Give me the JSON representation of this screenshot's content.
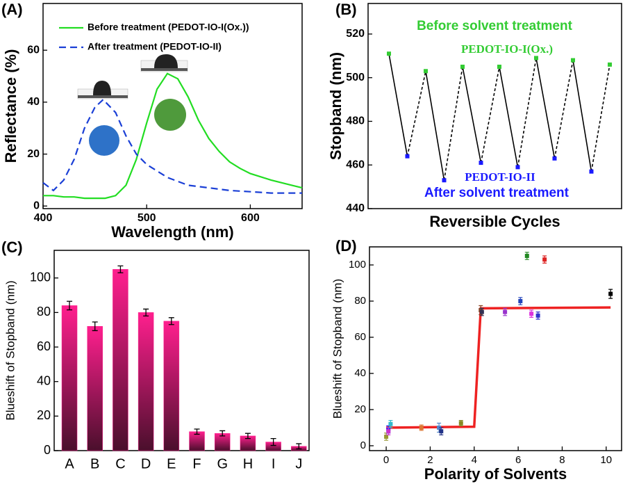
{
  "chart_data": [
    {
      "type": "line",
      "title": "(A)",
      "xlabel": "Wavelength (nm)",
      "ylabel": "Reflectance (%)",
      "xlim": [
        400,
        650
      ],
      "ylim": [
        -1,
        78
      ],
      "xticks": [
        400,
        500,
        600
      ],
      "yticks": [
        0,
        20,
        40,
        60
      ],
      "legend": "upper center",
      "series": [
        {
          "name": "Before treatment (PEDOT-IO-I(Ox.))",
          "color": "#22dd22",
          "style": "solid",
          "x": [
            400,
            410,
            420,
            430,
            440,
            450,
            460,
            470,
            480,
            490,
            500,
            510,
            520,
            530,
            540,
            550,
            560,
            570,
            580,
            590,
            600,
            620,
            640,
            650
          ],
          "values": [
            4,
            4,
            3.5,
            3.5,
            3,
            3,
            3,
            4,
            8,
            18,
            32,
            45,
            51,
            49,
            42,
            33,
            26,
            21,
            17,
            14.5,
            12.5,
            10,
            8,
            7
          ]
        },
        {
          "name": "After treatment (PEDOT-IO-II)",
          "color": "#1a3fd6",
          "style": "dashed",
          "x": [
            400,
            410,
            420,
            430,
            440,
            450,
            458,
            470,
            480,
            490,
            500,
            520,
            540,
            560,
            580,
            600,
            620,
            650
          ],
          "values": [
            9,
            6,
            10,
            18,
            30,
            38,
            41,
            36,
            27,
            20,
            16,
            11,
            8,
            7,
            6,
            5.5,
            5,
            5
          ]
        }
      ]
    },
    {
      "type": "cycle",
      "title": "(B)",
      "xlabel": "Reversible Cycles",
      "ylabel": "Stopband (nm)",
      "categories": [
        null,
        null,
        null,
        null,
        null,
        null,
        null,
        null,
        null,
        null,
        null,
        null,
        null
      ],
      "ylim": [
        440,
        534
      ],
      "yticks": [
        440,
        460,
        480,
        500,
        520
      ],
      "values": [
        511,
        464,
        503,
        453,
        505,
        461,
        505,
        459,
        509,
        463,
        508,
        457,
        506
      ],
      "marker_colors": [
        "#33cc33",
        "#1a1aff"
      ],
      "line_styles": [
        "solid",
        "dashed"
      ],
      "color": "#000000",
      "annotations": [
        {
          "text": "Before solvent treatment",
          "color": "#33cc33"
        },
        {
          "text": "PEDOT-IO-I(Ox.)",
          "color": "#33cc33"
        },
        {
          "text": "PEDOT-IO-II",
          "color": "#1a1aff"
        },
        {
          "text": "After solvent treatment",
          "color": "#1a1aff"
        }
      ]
    },
    {
      "type": "bar",
      "title": "(C)",
      "ylabel": "Blueshift of Stopband (nm)",
      "categories": [
        "A",
        "B",
        "C",
        "D",
        "E",
        "F",
        "G",
        "H",
        "I",
        "J"
      ],
      "values": [
        84,
        72,
        105,
        80,
        75,
        11,
        10,
        8.5,
        5,
        2.5
      ],
      "errors": [
        2.5,
        2.5,
        2,
        2,
        2,
        1.5,
        1.5,
        1.5,
        2,
        1.5
      ],
      "color": "#ff1f8e",
      "ylim": [
        0,
        116
      ],
      "yticks": [
        0,
        20,
        40,
        60,
        80,
        100
      ]
    },
    {
      "type": "scatter",
      "title": "(D)",
      "xlabel": "Polarity of Solvents",
      "ylabel": "Blueshift of Stopband (nm)",
      "xlim": [
        -0.76,
        10.7
      ],
      "ylim": [
        -2.7,
        110
      ],
      "xticks": [
        0,
        2,
        4,
        6,
        8,
        10
      ],
      "yticks": [
        0,
        20,
        40,
        60,
        80,
        100
      ],
      "x": [
        0,
        0.1,
        0.1,
        0.2,
        1.6,
        2.4,
        2.5,
        3.4,
        4.3,
        4.35,
        5.4,
        6.1,
        6.4,
        6.6,
        6.9,
        7.2,
        10.2
      ],
      "values": [
        5,
        9,
        8,
        12,
        10,
        10,
        8,
        12.5,
        75,
        74,
        74,
        80,
        105,
        73,
        72,
        103,
        84
      ],
      "errors": [
        2,
        2,
        2,
        2,
        1.5,
        2.5,
        2,
        1.5,
        2.5,
        2,
        2,
        2,
        2,
        2,
        2,
        2,
        2.5
      ],
      "colors": [
        "#999933",
        "#1a1aff",
        "#cc33cc",
        "#33bbcc",
        "#dd7733",
        "#5588cc",
        "#223388",
        "#888822",
        "#884422",
        "#333355",
        "#9933cc",
        "#2244bb",
        "#228822",
        "#dd33dd",
        "#3333cc",
        "#dd2222",
        "#000000"
      ],
      "fit": {
        "color": "#ee2222",
        "x": [
          0,
          4,
          4.3,
          10.2
        ],
        "values": [
          10,
          10.5,
          76,
          76.5
        ]
      }
    }
  ]
}
